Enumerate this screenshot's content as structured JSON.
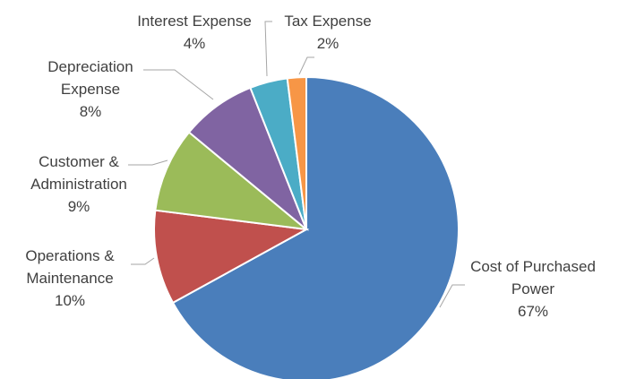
{
  "chart_data": {
    "type": "pie",
    "title": "",
    "start_angle_deg": 0,
    "direction": "clockwise",
    "slices": [
      {
        "label_lines": [
          "Cost of Purchased",
          "Power"
        ],
        "value": 67,
        "value_label": "67%",
        "color": "#4a7ebb"
      },
      {
        "label_lines": [
          "Operations &",
          "Maintenance"
        ],
        "value": 10,
        "value_label": "10%",
        "color": "#c0504d"
      },
      {
        "label_lines": [
          "Customer &",
          "Administration"
        ],
        "value": 9,
        "value_label": "9%",
        "color": "#9bbb59"
      },
      {
        "label_lines": [
          "Depreciation",
          "Expense"
        ],
        "value": 8,
        "value_label": "8%",
        "color": "#8064a2"
      },
      {
        "label_lines": [
          "Interest Expense"
        ],
        "value": 4,
        "value_label": "4%",
        "color": "#4bacc6"
      },
      {
        "label_lines": [
          "Tax Expense"
        ],
        "value": 2,
        "value_label": "2%",
        "color": "#f79646"
      }
    ]
  }
}
